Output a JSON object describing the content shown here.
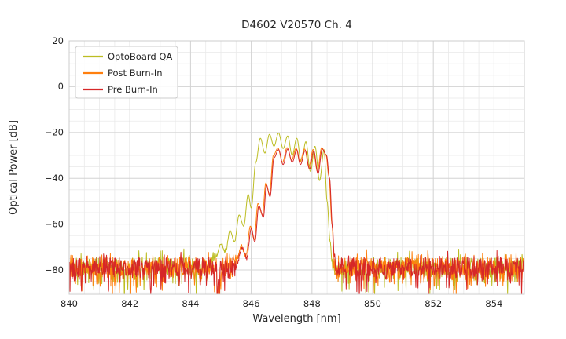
{
  "figure": {
    "title": "D4602 V20570 Ch. 4"
  },
  "legend": {
    "entries": [
      {
        "label": "OptoBoard QA",
        "color": "#bcbd22"
      },
      {
        "label": "Post Burn-In",
        "color": "#ff7f0e"
      },
      {
        "label": "Pre Burn-In",
        "color": "#d62728"
      }
    ]
  },
  "chart_data": {
    "type": "line",
    "title": "D4602 V20570 Ch. 4",
    "xlabel": "Wavelength [nm]",
    "ylabel": "Optical Power [dB]",
    "xlim": [
      840,
      855
    ],
    "ylim": [
      -90.6,
      20
    ],
    "grid": true,
    "legend_position": "upper left",
    "xticks": [
      {
        "value": 840,
        "label": "840"
      },
      {
        "value": 842,
        "label": "842"
      },
      {
        "value": 844,
        "label": "844"
      },
      {
        "value": 846,
        "label": "846"
      },
      {
        "value": 848,
        "label": "848"
      },
      {
        "value": 850,
        "label": "850"
      },
      {
        "value": 852,
        "label": "852"
      },
      {
        "value": 854,
        "label": "854"
      }
    ],
    "yticks": [
      {
        "value": 20,
        "label": "20"
      },
      {
        "value": 0,
        "label": "0"
      },
      {
        "value": -20,
        "label": "−20"
      },
      {
        "value": -40,
        "label": "−40"
      },
      {
        "value": -60,
        "label": "−60"
      },
      {
        "value": -80,
        "label": "−80"
      }
    ],
    "noise": {
      "floor_dB": -78.5,
      "band_dB": 8,
      "down_spike_prob": 0.35,
      "down_spike_max_dB": 13,
      "up_spike_prob": 0.1,
      "up_spike_max_dB": 4.5,
      "notch": {
        "x": 844.92,
        "width": 0.1,
        "depth_dB": 12
      },
      "x_step_nm": 0.014,
      "seed": 1337
    },
    "series": [
      {
        "name": "OptoBoard QA",
        "color": "#bcbd22",
        "envelope": [
          [
            844.55,
            -100
          ],
          [
            844.8,
            -76
          ],
          [
            845.0,
            -69
          ],
          [
            845.15,
            -73
          ],
          [
            845.3,
            -63
          ],
          [
            845.45,
            -68
          ],
          [
            845.6,
            -56
          ],
          [
            845.75,
            -61
          ],
          [
            845.9,
            -47
          ],
          [
            846.0,
            -53
          ],
          [
            846.15,
            -33
          ],
          [
            846.3,
            -22.5
          ],
          [
            846.45,
            -29
          ],
          [
            846.6,
            -20.8
          ],
          [
            846.75,
            -26
          ],
          [
            846.9,
            -20.2
          ],
          [
            847.05,
            -27
          ],
          [
            847.2,
            -21.5
          ],
          [
            847.35,
            -30
          ],
          [
            847.5,
            -22.5
          ],
          [
            847.65,
            -33
          ],
          [
            847.8,
            -24
          ],
          [
            847.95,
            -37
          ],
          [
            848.1,
            -26
          ],
          [
            848.25,
            -41
          ],
          [
            848.4,
            -27.5
          ],
          [
            848.5,
            -50
          ],
          [
            848.6,
            -68
          ],
          [
            848.7,
            -88
          ],
          [
            848.78,
            -110
          ]
        ]
      },
      {
        "name": "Post Burn-In",
        "color": "#ff7f0e",
        "envelope": [
          [
            845.3,
            -100
          ],
          [
            845.5,
            -79
          ],
          [
            845.67,
            -70
          ],
          [
            845.82,
            -75
          ],
          [
            845.97,
            -61
          ],
          [
            846.1,
            -67
          ],
          [
            846.22,
            -51
          ],
          [
            846.37,
            -56
          ],
          [
            846.48,
            -42
          ],
          [
            846.6,
            -47
          ],
          [
            846.73,
            -30
          ],
          [
            846.88,
            -26.8
          ],
          [
            847.03,
            -33
          ],
          [
            847.18,
            -26.6
          ],
          [
            847.33,
            -32
          ],
          [
            847.48,
            -26.9
          ],
          [
            847.6,
            -33
          ],
          [
            847.76,
            -27.2
          ],
          [
            847.9,
            -35
          ],
          [
            848.04,
            -27.4
          ],
          [
            848.18,
            -37
          ],
          [
            848.32,
            -26.6
          ],
          [
            848.46,
            -29.5
          ],
          [
            848.56,
            -39
          ],
          [
            848.66,
            -60
          ],
          [
            848.74,
            -83
          ],
          [
            848.82,
            -110
          ]
        ]
      },
      {
        "name": "Pre Burn-In",
        "color": "#d62728",
        "envelope": [
          [
            845.35,
            -100
          ],
          [
            845.55,
            -80
          ],
          [
            845.7,
            -71
          ],
          [
            845.85,
            -76
          ],
          [
            846.0,
            -62
          ],
          [
            846.12,
            -68
          ],
          [
            846.25,
            -52
          ],
          [
            846.4,
            -57
          ],
          [
            846.5,
            -43
          ],
          [
            846.62,
            -48
          ],
          [
            846.75,
            -31
          ],
          [
            846.9,
            -27.5
          ],
          [
            847.05,
            -34
          ],
          [
            847.2,
            -27.2
          ],
          [
            847.35,
            -33
          ],
          [
            847.5,
            -27.5
          ],
          [
            847.62,
            -34
          ],
          [
            847.78,
            -27.8
          ],
          [
            847.92,
            -36
          ],
          [
            848.06,
            -28
          ],
          [
            848.2,
            -38
          ],
          [
            848.34,
            -27.2
          ],
          [
            848.48,
            -30
          ],
          [
            848.58,
            -40
          ],
          [
            848.68,
            -62
          ],
          [
            848.76,
            -85
          ],
          [
            848.84,
            -110
          ]
        ]
      }
    ]
  }
}
